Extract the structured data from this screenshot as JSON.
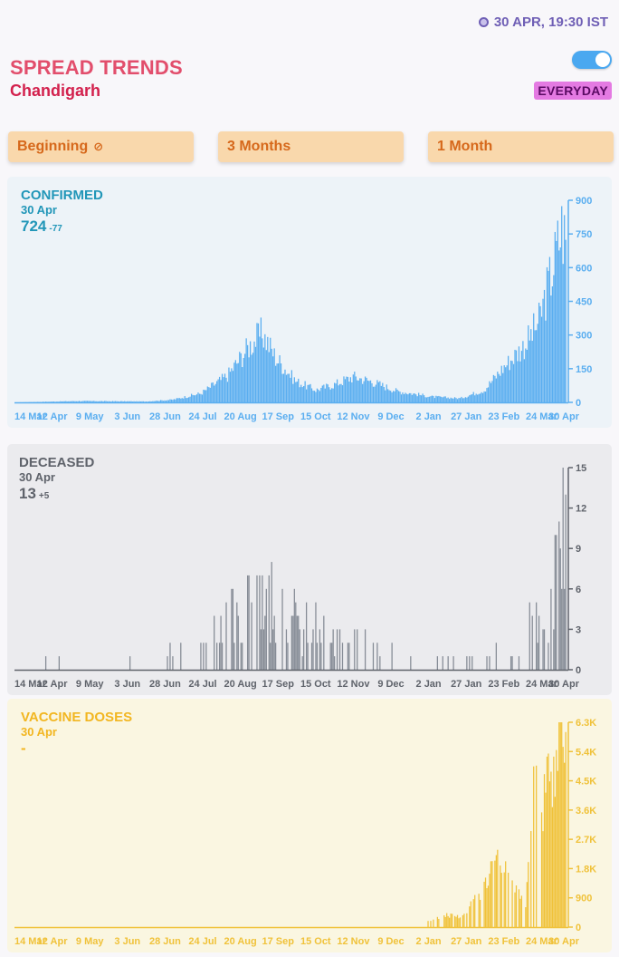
{
  "header": {
    "timestamp": "30 APR, 19:30 IST",
    "title": "SPREAD TRENDS",
    "subtitle": "Chandigarh",
    "mode_label": "EVERYDAY",
    "toggle_on": true
  },
  "range_buttons": [
    "Beginning",
    "3 Months",
    "1 Month"
  ],
  "x_tick_labels": [
    "14 Mar",
    "12 Apr",
    "9 May",
    "3 Jun",
    "28 Jun",
    "24 Jul",
    "20 Aug",
    "17 Sep",
    "15 Oct",
    "12 Nov",
    "9 Dec",
    "2 Jan",
    "27 Jan",
    "23 Feb",
    "24 Mar",
    "30 Apr"
  ],
  "chart_data": [
    {
      "type": "bar",
      "title": "CONFIRMED",
      "date": "30 Apr",
      "value": "724",
      "delta": "-77",
      "x_range": [
        "2020-03-14",
        "2021-04-30"
      ],
      "ylim": [
        0,
        900
      ],
      "y_ticks": [
        "0",
        "150",
        "300",
        "450",
        "600",
        "750",
        "900"
      ],
      "profile_note": "approximate daily values read at key dates",
      "key_points": [
        [
          "2020-03-14",
          0
        ],
        [
          "2020-05-01",
          6
        ],
        [
          "2020-06-20",
          4
        ],
        [
          "2020-07-10",
          12
        ],
        [
          "2020-07-31",
          40
        ],
        [
          "2020-08-20",
          120
        ],
        [
          "2020-09-05",
          250
        ],
        [
          "2020-09-15",
          310
        ],
        [
          "2020-09-25",
          200
        ],
        [
          "2020-10-10",
          95
        ],
        [
          "2020-10-25",
          55
        ],
        [
          "2020-11-08",
          80
        ],
        [
          "2020-11-22",
          115
        ],
        [
          "2020-12-05",
          95
        ],
        [
          "2020-12-25",
          50
        ],
        [
          "2021-01-20",
          25
        ],
        [
          "2021-02-10",
          18
        ],
        [
          "2021-02-28",
          55
        ],
        [
          "2021-03-15",
          160
        ],
        [
          "2021-03-31",
          260
        ],
        [
          "2021-04-10",
          360
        ],
        [
          "2021-04-20",
          590
        ],
        [
          "2021-04-27",
          780
        ],
        [
          "2021-04-30",
          724
        ]
      ]
    },
    {
      "type": "bar",
      "title": "DECEASED",
      "date": "30 Apr",
      "value": "13",
      "delta": "+5",
      "x_range": [
        "2020-03-14",
        "2021-04-30"
      ],
      "ylim": [
        0,
        15
      ],
      "y_ticks": [
        "0",
        "3",
        "6",
        "9",
        "12",
        "15"
      ],
      "profile_note": "approximate daily values read at key dates",
      "key_points": [
        [
          "2020-03-14",
          0
        ],
        [
          "2020-05-15",
          0.3
        ],
        [
          "2020-07-01",
          0.6
        ],
        [
          "2020-08-01",
          1.5
        ],
        [
          "2020-08-25",
          3
        ],
        [
          "2020-09-15",
          4.5
        ],
        [
          "2020-10-10",
          3
        ],
        [
          "2020-11-10",
          2
        ],
        [
          "2020-12-10",
          1.2
        ],
        [
          "2021-01-15",
          0.6
        ],
        [
          "2021-03-01",
          0.5
        ],
        [
          "2021-03-25",
          2
        ],
        [
          "2021-04-15",
          3
        ],
        [
          "2021-04-25",
          6
        ],
        [
          "2021-04-30",
          13
        ]
      ]
    },
    {
      "type": "bar",
      "title": "VACCINE DOSES",
      "date": "30 Apr",
      "value": "-",
      "delta": "",
      "x_range": [
        "2020-03-14",
        "2021-04-30"
      ],
      "ylim": [
        0,
        6300
      ],
      "y_ticks": [
        "0",
        "900",
        "1.8K",
        "2.7K",
        "3.6K",
        "4.5K",
        "5.4K",
        "6.3K"
      ],
      "profile_note": "approximate daily values read at key dates",
      "key_points": [
        [
          "2021-01-16",
          0
        ],
        [
          "2021-01-17",
          200
        ],
        [
          "2021-01-31",
          400
        ],
        [
          "2021-02-10",
          300
        ],
        [
          "2021-02-20",
          800
        ],
        [
          "2021-03-01",
          1300
        ],
        [
          "2021-03-08",
          2000
        ],
        [
          "2021-03-15",
          1800
        ],
        [
          "2021-03-22",
          1200
        ],
        [
          "2021-03-31",
          600
        ],
        [
          "2021-04-05",
          4500
        ],
        [
          "2021-04-12",
          3500
        ],
        [
          "2021-04-18",
          4600
        ],
        [
          "2021-04-25",
          5700
        ],
        [
          "2021-04-30",
          6000
        ]
      ]
    }
  ],
  "colors": {
    "confirmed": "#5aaef0",
    "confirmed_text": "#2196b8",
    "confirmed_bg": "#edf3f8",
    "deceased": "#858b95",
    "deceased_text": "#5f636b",
    "deceased_bg": "#ebebee",
    "vaccine": "#f0c23a",
    "vaccine_text": "#f2b621",
    "vaccine_bg": "#faf6e1"
  }
}
